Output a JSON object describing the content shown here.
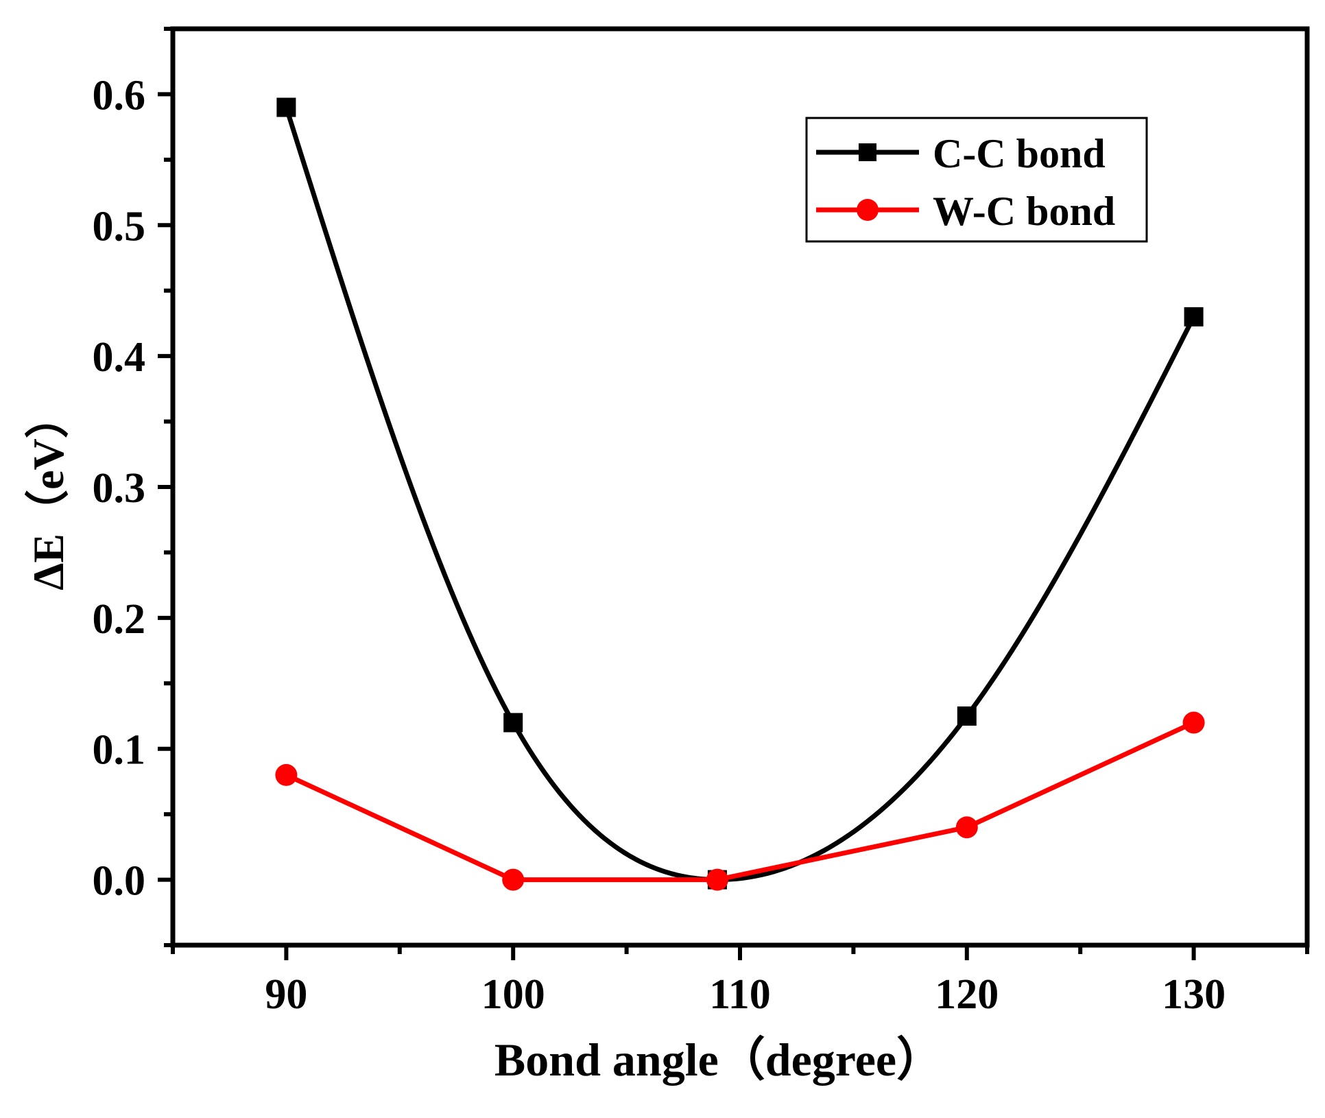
{
  "chart_data": {
    "type": "line",
    "title": "",
    "xlabel": "Bond angle（degree）",
    "ylabel": "ΔE（eV）",
    "xlim": [
      85,
      135
    ],
    "ylim": [
      -0.05,
      0.65
    ],
    "x_ticks": [
      90,
      100,
      110,
      120,
      130
    ],
    "x_tick_labels": [
      "90",
      "100",
      "110",
      "120",
      "130"
    ],
    "y_ticks": [
      0.0,
      0.1,
      0.2,
      0.3,
      0.4,
      0.5,
      0.6
    ],
    "y_tick_labels": [
      "0.0",
      "0.1",
      "0.2",
      "0.3",
      "0.4",
      "0.5",
      "0.6"
    ],
    "grid": false,
    "legend_position": "top-right",
    "series": [
      {
        "name": "C-C bond",
        "color": "#000000",
        "marker": "square",
        "smooth": true,
        "x": [
          90,
          100,
          109,
          120,
          130
        ],
        "y": [
          0.59,
          0.12,
          0.0,
          0.125,
          0.43
        ]
      },
      {
        "name": "W-C bond",
        "color": "#ff0000",
        "marker": "circle",
        "smooth": false,
        "x": [
          90,
          100,
          109,
          120,
          130
        ],
        "y": [
          0.08,
          0.0,
          0.0,
          0.04,
          0.12
        ]
      }
    ]
  }
}
